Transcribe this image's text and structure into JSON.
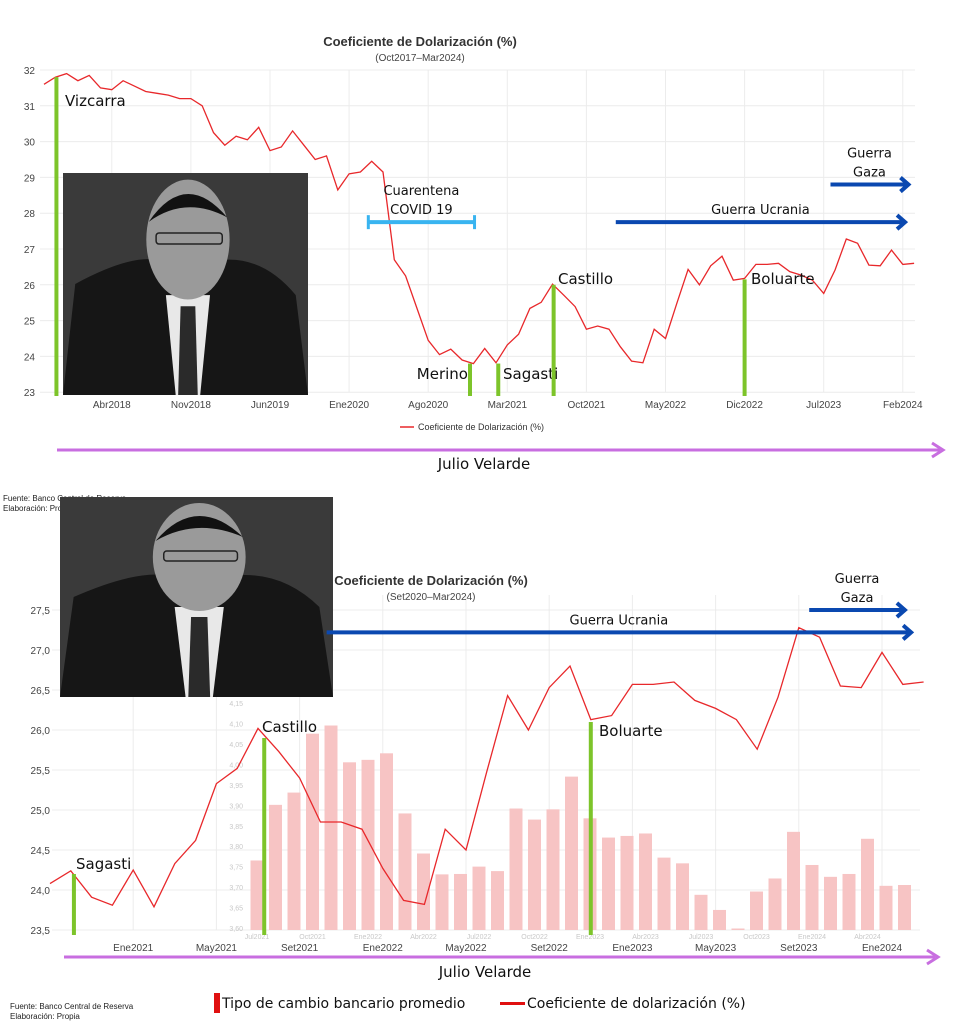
{
  "colors": {
    "line": "#e8282b",
    "grid": "#ececec",
    "president": "#7dc42a",
    "covid": "#39b4f0",
    "war": "#0a48b0",
    "tenure": "#c86ee0",
    "bars": "#f7c4c4",
    "legend_red": "#e01010"
  },
  "chart_data": [
    {
      "type": "line",
      "title": "Coeficiente de Dolarización (%)",
      "subtitle": "(Oct2017–Mar2024)",
      "legend": "Coeficiente de Dolarización (%)",
      "legend_position": "bottom",
      "x_start": "Oct2017",
      "ylim": [
        23,
        32
      ],
      "y_ticks": [
        23,
        24,
        25,
        26,
        27,
        28,
        29,
        30,
        31,
        32
      ],
      "x_ticks": [
        {
          "label": "Abr2018",
          "month": 6
        },
        {
          "label": "Nov2018",
          "month": 13
        },
        {
          "label": "Jun2019",
          "month": 20
        },
        {
          "label": "Ene2020",
          "month": 27
        },
        {
          "label": "Ago2020",
          "month": 34
        },
        {
          "label": "Mar2021",
          "month": 41
        },
        {
          "label": "Oct2021",
          "month": 48
        },
        {
          "label": "May2022",
          "month": 55
        },
        {
          "label": "Dic2022",
          "month": 62
        },
        {
          "label": "Jul2023",
          "month": 69
        },
        {
          "label": "Feb2024",
          "month": 76
        }
      ],
      "values": [
        31.6,
        31.8,
        31.9,
        31.7,
        31.85,
        31.5,
        31.45,
        31.7,
        31.55,
        31.4,
        31.35,
        31.3,
        31.2,
        31.2,
        31.0,
        30.25,
        29.9,
        30.15,
        30.05,
        30.4,
        29.75,
        29.85,
        30.3,
        29.9,
        29.5,
        29.6,
        28.65,
        29.1,
        29.15,
        29.45,
        29.15,
        26.7,
        26.25,
        25.35,
        24.45,
        24.05,
        24.2,
        23.9,
        23.8,
        24.22,
        23.82,
        24.32,
        24.62,
        25.34,
        25.51,
        26.02,
        25.71,
        25.39,
        24.76,
        24.85,
        24.76,
        24.27,
        23.87,
        23.82,
        24.76,
        24.5,
        25.48,
        26.43,
        26.0,
        26.53,
        26.8,
        26.13,
        26.18,
        26.57,
        26.57,
        26.6,
        26.37,
        26.27,
        26.13,
        25.76,
        26.41,
        27.28,
        27.16,
        26.55,
        26.53,
        26.97,
        26.57,
        26.6
      ],
      "presidents": [
        {
          "label": "Vizcarra",
          "month": 1.1,
          "top": 31.8
        },
        {
          "label": "Merino",
          "month": 37.7,
          "top": 23.8
        },
        {
          "label": "Sagasti",
          "month": 40.2,
          "top": 23.8
        },
        {
          "label": "Castillo",
          "month": 45.1,
          "top": 26.0
        },
        {
          "label": "Boluarte",
          "month": 62,
          "top": 26.15
        }
      ],
      "events": [
        {
          "label_lines": [
            "Cuarentena",
            "COVID 19"
          ],
          "from": 28.7,
          "to": 38.1,
          "y": 27.75,
          "kind": "covid"
        },
        {
          "label_lines": [
            "Guerra Ucrania"
          ],
          "from": 50.6,
          "to": 76.2,
          "y": 27.75,
          "kind": "war"
        },
        {
          "label_lines": [
            "Guerra",
            "Gaza"
          ],
          "from": 69.6,
          "to": 76.5,
          "y": 28.8,
          "kind": "war"
        }
      ]
    },
    {
      "type": "line+bar",
      "title": "Coeficiente de Dolarización (%)",
      "subtitle": "(Set2020–Mar2024)",
      "x_start": "Set2020",
      "ylim": [
        23.5,
        27.5
      ],
      "y_ticks": [
        "23,5",
        "24,0",
        "24,5",
        "25,0",
        "25,5",
        "26,0",
        "26,5",
        "27,0",
        "27,5"
      ],
      "y_tick_values": [
        23.5,
        24.0,
        24.5,
        25.0,
        25.5,
        26.0,
        26.5,
        27.0,
        27.5
      ],
      "x_ticks": [
        {
          "label": "Ene2021",
          "month": 4
        },
        {
          "label": "May2021",
          "month": 8
        },
        {
          "label": "Set2021",
          "month": 12
        },
        {
          "label": "Ene2022",
          "month": 16
        },
        {
          "label": "May2022",
          "month": 20
        },
        {
          "label": "Set2022",
          "month": 24
        },
        {
          "label": "Ene2023",
          "month": 28
        },
        {
          "label": "May2023",
          "month": 32
        },
        {
          "label": "Set2023",
          "month": 36
        },
        {
          "label": "Ene2024",
          "month": 40
        }
      ],
      "line_series": {
        "name": "Coeficiente de dolarización (%)",
        "values": [
          24.08,
          24.24,
          23.91,
          23.81,
          24.25,
          23.79,
          24.33,
          24.62,
          25.33,
          25.52,
          26.02,
          25.73,
          25.4,
          24.85,
          24.85,
          24.76,
          24.27,
          23.87,
          23.82,
          24.76,
          24.5,
          25.48,
          26.43,
          26.0,
          26.53,
          26.8,
          26.13,
          26.18,
          26.57,
          26.57,
          26.6,
          26.37,
          26.27,
          26.13,
          25.76,
          26.41,
          27.28,
          27.16,
          26.55,
          26.53,
          26.97,
          26.57,
          26.6
        ]
      },
      "bar_series": {
        "name": "Tipo de cambio bancario promedio",
        "x_start": "Jul2021",
        "ylim": [
          3.6,
          4.15
        ],
        "y_ticks": [
          "3,60",
          "3,65",
          "3,70",
          "3,75",
          "3,80",
          "3,85",
          "3,90",
          "3,95",
          "4,00",
          "4,05",
          "4,10",
          "4,15"
        ],
        "x_ticks": [
          {
            "label": "Oct2021",
            "index": 3
          },
          {
            "label": "Ene2022",
            "index": 6
          },
          {
            "label": "Abr2022",
            "index": 9
          },
          {
            "label": "Jul2022",
            "index": 12
          },
          {
            "label": "Oct2022",
            "index": 15
          },
          {
            "label": "Ene2023",
            "index": 18
          },
          {
            "label": "Abr2023",
            "index": 21
          },
          {
            "label": "Jul2023",
            "index": 24
          },
          {
            "label": "Oct2023",
            "index": 27
          },
          {
            "label": "Ene2024",
            "index": 30
          },
          {
            "label": "Abr2024",
            "index": 33
          }
        ],
        "values": [
          3.77,
          3.906,
          3.936,
          4.08,
          4.1,
          4.01,
          4.016,
          4.032,
          3.885,
          3.787,
          3.736,
          3.737,
          3.755,
          3.744,
          3.897,
          3.87,
          3.895,
          3.975,
          3.873,
          3.826,
          3.83,
          3.836,
          3.777,
          3.763,
          3.686,
          3.649,
          3.6,
          3.694,
          3.726,
          3.84,
          3.759,
          3.73,
          3.737,
          3.823,
          3.708,
          3.71
        ]
      },
      "presidents": [
        {
          "label": "Sagasti",
          "month": 1.15,
          "top": 24.2
        },
        {
          "label": "Castillo",
          "month": 10.3,
          "top": 25.9
        },
        {
          "label": "Boluarte",
          "month": 26.0,
          "top": 26.1
        }
      ],
      "events": [
        {
          "label_lines": [
            "Guerra Ucrania"
          ],
          "from": 13.3,
          "to": 41.4,
          "y": 27.22,
          "kind": "war"
        },
        {
          "label_lines": [
            "Guerra",
            "Gaza"
          ],
          "from": 36.5,
          "to": 41.1,
          "y": 27.5,
          "kind": "war"
        }
      ]
    }
  ],
  "tenure": {
    "label": "Julio Velarde"
  },
  "source": {
    "line1": "Fuente: Banco Central de Reserva",
    "line2": "Elaboración: Propia"
  },
  "bottom_legend": {
    "bars": "Tipo de cambio bancario promedio",
    "line": "Coeficiente de dolarización (%)"
  }
}
